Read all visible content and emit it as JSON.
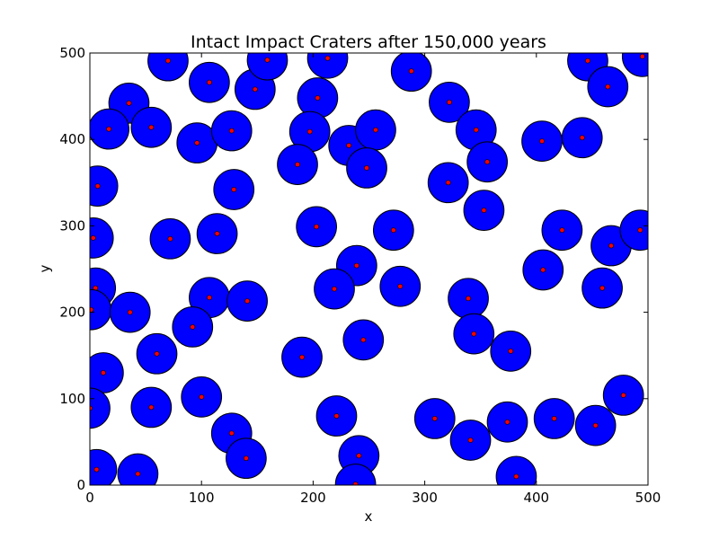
{
  "chart_data": {
    "type": "scatter",
    "title": "Intact Impact Craters after 150,000 years",
    "xlabel": "x",
    "ylabel": "y",
    "xlim": [
      0,
      500
    ],
    "ylim": [
      0,
      500
    ],
    "xticks": [
      "0",
      "100",
      "200",
      "300",
      "400",
      "500"
    ],
    "yticks": [
      "0",
      "100",
      "200",
      "300",
      "400",
      "500"
    ],
    "grid": false,
    "crater_radius": 18,
    "crater_color": "#0000ff",
    "center_color": "#ff0000",
    "series": [
      {
        "points": [
          [
            70,
            491
          ],
          [
            107,
            466
          ],
          [
            148,
            458
          ],
          [
            159,
            492
          ],
          [
            213,
            494
          ],
          [
            288,
            479
          ],
          [
            446,
            491
          ],
          [
            464,
            461
          ],
          [
            495,
            496
          ],
          [
            35,
            442
          ],
          [
            17,
            412
          ],
          [
            55,
            414
          ],
          [
            322,
            443
          ],
          [
            204,
            448
          ],
          [
            96,
            396
          ],
          [
            127,
            410
          ],
          [
            197,
            409
          ],
          [
            232,
            393
          ],
          [
            256,
            411
          ],
          [
            346,
            411
          ],
          [
            405,
            398
          ],
          [
            441,
            402
          ],
          [
            356,
            374
          ],
          [
            186,
            371
          ],
          [
            248,
            367
          ],
          [
            7,
            346
          ],
          [
            129,
            342
          ],
          [
            321,
            350
          ],
          [
            353,
            318
          ],
          [
            203,
            299
          ],
          [
            114,
            291
          ],
          [
            3,
            286
          ],
          [
            72,
            285
          ],
          [
            272,
            295
          ],
          [
            423,
            295
          ],
          [
            467,
            277
          ],
          [
            493,
            295
          ],
          [
            239,
            254
          ],
          [
            406,
            249
          ],
          [
            5,
            228
          ],
          [
            107,
            217
          ],
          [
            141,
            213
          ],
          [
            219,
            227
          ],
          [
            278,
            230
          ],
          [
            459,
            228
          ],
          [
            339,
            216
          ],
          [
            1,
            203
          ],
          [
            36,
            200
          ],
          [
            92,
            183
          ],
          [
            344,
            175
          ],
          [
            245,
            168
          ],
          [
            377,
            155
          ],
          [
            60,
            152
          ],
          [
            190,
            148
          ],
          [
            12,
            130
          ],
          [
            100,
            102
          ],
          [
            0,
            89
          ],
          [
            55,
            90
          ],
          [
            221,
            80
          ],
          [
            309,
            77
          ],
          [
            374,
            73
          ],
          [
            416,
            77
          ],
          [
            453,
            69
          ],
          [
            478,
            104
          ],
          [
            127,
            60
          ],
          [
            341,
            52
          ],
          [
            241,
            34
          ],
          [
            140,
            31
          ],
          [
            6,
            18
          ],
          [
            43,
            13
          ],
          [
            382,
            10
          ],
          [
            238,
            1
          ]
        ]
      }
    ]
  }
}
